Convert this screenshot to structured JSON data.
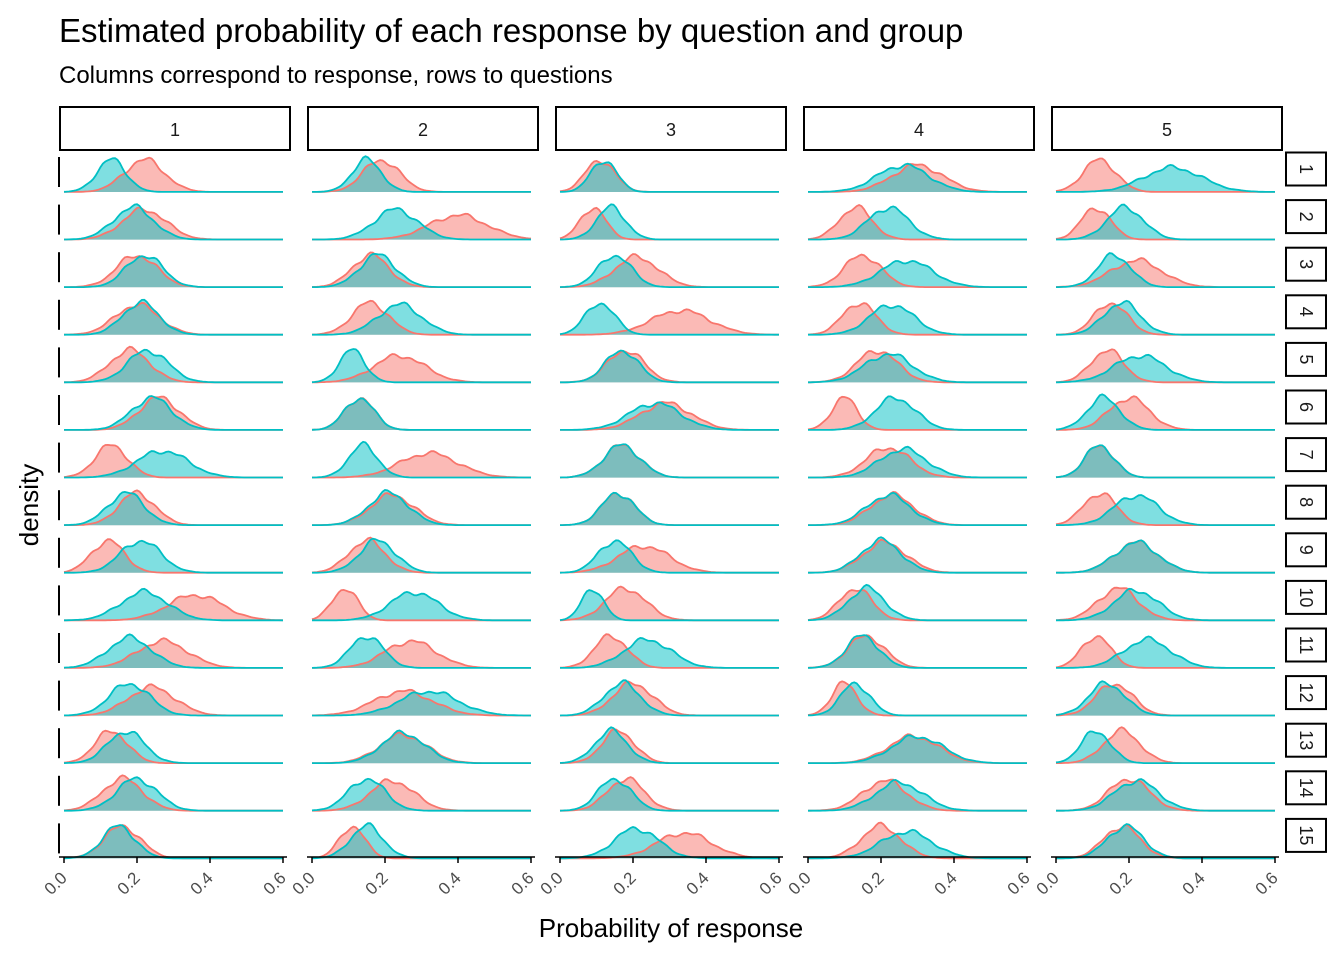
{
  "chart_data": {
    "type": "area",
    "subtype": "faceted density plot",
    "title": "Estimated probability of each response by question and group",
    "subtitle": "Columns correspond to response, rows to questions",
    "xlabel": "Probability of response",
    "ylabel": "density",
    "xlim": [
      0,
      0.6
    ],
    "x_ticks": [
      "0.0",
      "0.2",
      "0.4",
      "0.6"
    ],
    "responses": [
      "1",
      "2",
      "3",
      "4",
      "5"
    ],
    "questions": [
      "1",
      "2",
      "3",
      "4",
      "5",
      "6",
      "7",
      "8",
      "9",
      "10",
      "11",
      "12",
      "13",
      "14",
      "15"
    ],
    "series_colors": [
      "#F8766D",
      "#00BFC4"
    ],
    "fill_opacity": 0.5,
    "legend": "none",
    "grid": false,
    "note": "Each cell holds [mode_group_a, spread_a, mode_group_b, spread_b]; values estimated from the density peaks.",
    "cells": [
      [
        [
          0.22,
          0.055,
          0.13,
          0.04
        ],
        [
          0.19,
          0.05,
          0.15,
          0.04
        ],
        [
          0.11,
          0.04,
          0.12,
          0.035
        ],
        [
          0.3,
          0.07,
          0.26,
          0.07
        ],
        [
          0.12,
          0.045,
          0.32,
          0.08
        ]
      ],
      [
        [
          0.22,
          0.06,
          0.19,
          0.055
        ],
        [
          0.4,
          0.08,
          0.23,
          0.06
        ],
        [
          0.09,
          0.035,
          0.14,
          0.04
        ],
        [
          0.13,
          0.045,
          0.22,
          0.055
        ],
        [
          0.11,
          0.04,
          0.19,
          0.05
        ]
      ],
      [
        [
          0.2,
          0.055,
          0.22,
          0.05
        ],
        [
          0.16,
          0.05,
          0.18,
          0.05
        ],
        [
          0.21,
          0.06,
          0.15,
          0.045
        ],
        [
          0.15,
          0.05,
          0.27,
          0.07
        ],
        [
          0.22,
          0.07,
          0.16,
          0.045
        ]
      ],
      [
        [
          0.2,
          0.06,
          0.21,
          0.05
        ],
        [
          0.16,
          0.05,
          0.24,
          0.06
        ],
        [
          0.33,
          0.08,
          0.11,
          0.04
        ],
        [
          0.14,
          0.045,
          0.23,
          0.06
        ],
        [
          0.15,
          0.045,
          0.18,
          0.05
        ]
      ],
      [
        [
          0.18,
          0.055,
          0.23,
          0.055
        ],
        [
          0.24,
          0.07,
          0.11,
          0.035
        ],
        [
          0.18,
          0.05,
          0.17,
          0.045
        ],
        [
          0.19,
          0.055,
          0.22,
          0.065
        ],
        [
          0.14,
          0.045,
          0.23,
          0.07
        ]
      ],
      [
        [
          0.26,
          0.055,
          0.24,
          0.055
        ],
        [
          0.13,
          0.04,
          0.13,
          0.04
        ],
        [
          0.29,
          0.07,
          0.26,
          0.07
        ],
        [
          0.1,
          0.035,
          0.24,
          0.055
        ],
        [
          0.2,
          0.055,
          0.13,
          0.045
        ]
      ],
      [
        [
          0.13,
          0.045,
          0.27,
          0.07
        ],
        [
          0.32,
          0.08,
          0.14,
          0.04
        ],
        [
          0.17,
          0.05,
          0.17,
          0.05
        ],
        [
          0.22,
          0.06,
          0.26,
          0.065
        ],
        [
          0.12,
          0.04,
          0.12,
          0.04
        ]
      ],
      [
        [
          0.2,
          0.05,
          0.17,
          0.05
        ],
        [
          0.22,
          0.06,
          0.21,
          0.055
        ],
        [
          0.16,
          0.045,
          0.16,
          0.045
        ],
        [
          0.23,
          0.06,
          0.22,
          0.06
        ],
        [
          0.12,
          0.045,
          0.22,
          0.06
        ]
      ],
      [
        [
          0.12,
          0.045,
          0.21,
          0.055
        ],
        [
          0.15,
          0.05,
          0.18,
          0.05
        ],
        [
          0.23,
          0.07,
          0.15,
          0.045
        ],
        [
          0.21,
          0.06,
          0.2,
          0.055
        ],
        [
          0.22,
          0.06,
          0.22,
          0.06
        ]
      ],
      [
        [
          0.36,
          0.075,
          0.22,
          0.065
        ],
        [
          0.09,
          0.035,
          0.28,
          0.065
        ],
        [
          0.18,
          0.055,
          0.09,
          0.03
        ],
        [
          0.13,
          0.045,
          0.16,
          0.05
        ],
        [
          0.17,
          0.055,
          0.22,
          0.06
        ]
      ],
      [
        [
          0.27,
          0.07,
          0.18,
          0.06
        ],
        [
          0.27,
          0.07,
          0.15,
          0.045
        ],
        [
          0.14,
          0.045,
          0.24,
          0.065
        ],
        [
          0.16,
          0.05,
          0.15,
          0.045
        ],
        [
          0.11,
          0.04,
          0.25,
          0.065
        ]
      ],
      [
        [
          0.24,
          0.065,
          0.18,
          0.055
        ],
        [
          0.25,
          0.08,
          0.32,
          0.08
        ],
        [
          0.2,
          0.055,
          0.17,
          0.05
        ],
        [
          0.1,
          0.035,
          0.13,
          0.04
        ],
        [
          0.16,
          0.05,
          0.14,
          0.05
        ]
      ],
      [
        [
          0.13,
          0.045,
          0.17,
          0.05
        ],
        [
          0.25,
          0.065,
          0.25,
          0.06
        ],
        [
          0.16,
          0.045,
          0.14,
          0.045
        ],
        [
          0.29,
          0.07,
          0.3,
          0.07
        ],
        [
          0.18,
          0.05,
          0.11,
          0.04
        ]
      ],
      [
        [
          0.16,
          0.055,
          0.2,
          0.055
        ],
        [
          0.22,
          0.06,
          0.15,
          0.05
        ],
        [
          0.18,
          0.05,
          0.15,
          0.045
        ],
        [
          0.21,
          0.06,
          0.25,
          0.065
        ],
        [
          0.2,
          0.055,
          0.22,
          0.06
        ]
      ],
      [
        [
          0.16,
          0.05,
          0.15,
          0.045
        ],
        [
          0.11,
          0.035,
          0.15,
          0.045
        ],
        [
          0.34,
          0.075,
          0.21,
          0.06
        ],
        [
          0.2,
          0.055,
          0.27,
          0.07
        ],
        [
          0.18,
          0.05,
          0.19,
          0.05
        ]
      ]
    ]
  }
}
